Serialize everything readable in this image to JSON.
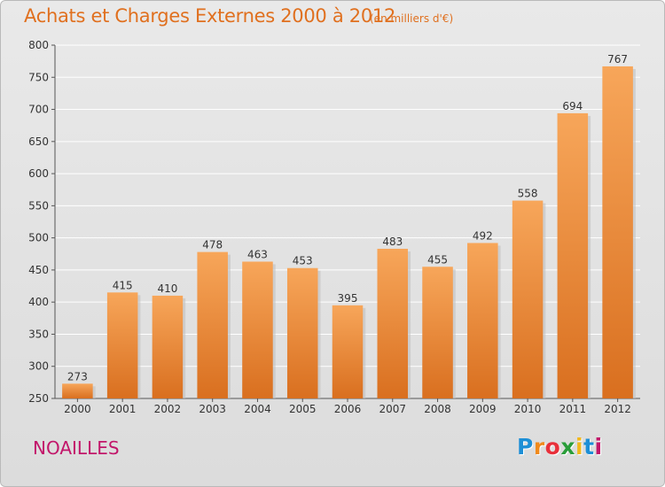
{
  "header": {
    "title": "Achats et Charges Externes 2000 à 2012",
    "unit": "(en milliers d'€)"
  },
  "commune": "NOAILLES",
  "logo": {
    "letters": [
      "P",
      "r",
      "o",
      "x",
      "i",
      "t",
      "i"
    ],
    "colors": [
      "#1d8fd6",
      "#f08a1c",
      "#e8303a",
      "#2a9d3a",
      "#f2b81c",
      "#1d8fd6",
      "#c2166a"
    ]
  },
  "colors": {
    "title": "#e0701f",
    "commune": "#c2166a",
    "bar_light": "#f7a65a",
    "bar_dark": "#d96f1f",
    "grid": "#ffffff"
  },
  "chart_data": {
    "type": "bar",
    "categories": [
      "2000",
      "2001",
      "2002",
      "2003",
      "2004",
      "2005",
      "2006",
      "2007",
      "2008",
      "2009",
      "2010",
      "2011",
      "2012"
    ],
    "values": [
      273,
      415,
      410,
      478,
      463,
      453,
      395,
      483,
      455,
      492,
      558,
      694,
      767
    ],
    "ylim": [
      250,
      800
    ],
    "yticks": [
      250,
      300,
      350,
      400,
      450,
      500,
      550,
      600,
      650,
      700,
      750,
      800
    ],
    "grid": true
  }
}
